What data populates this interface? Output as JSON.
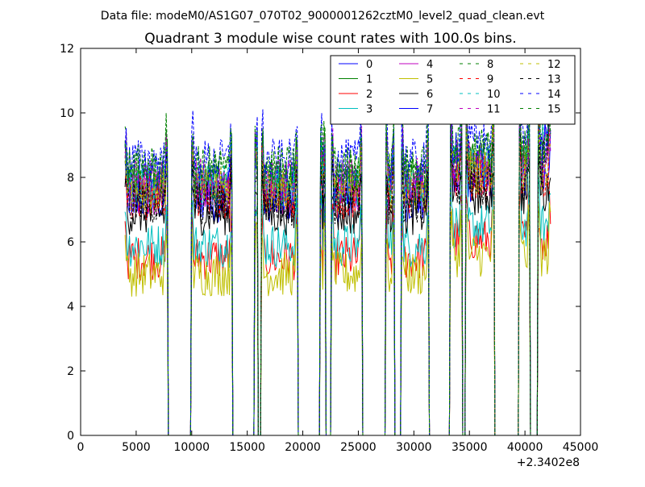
{
  "figure": {
    "supertitle": "Data file: modeM0/AS1G07_070T02_9000001262cztM0_level2_quad_clean.evt"
  },
  "chart_data": {
    "type": "line",
    "title": "Quadrant 3 module wise count rates with 100.0s bins.",
    "xlabel": "",
    "ylabel": "",
    "x_offset_label": "+2.3402e8",
    "xlim": [
      0,
      45000
    ],
    "ylim": [
      0,
      12
    ],
    "x_ticks": [
      0,
      5000,
      10000,
      15000,
      20000,
      25000,
      30000,
      35000,
      40000,
      45000
    ],
    "y_ticks": [
      0,
      2,
      4,
      6,
      8,
      10,
      12
    ],
    "grid": false,
    "legend_position": "top-right",
    "legend_columns": 4,
    "segments_on": [
      [
        4000,
        7800
      ],
      [
        10000,
        13600
      ],
      [
        15700,
        15950
      ],
      [
        16300,
        19500
      ],
      [
        21600,
        22000
      ],
      [
        22600,
        25300
      ],
      [
        27500,
        28200
      ],
      [
        28900,
        31300
      ],
      [
        33300,
        34300
      ],
      [
        34700,
        37200
      ],
      [
        39500,
        40400
      ],
      [
        41200,
        42300
      ]
    ],
    "series": [
      {
        "name": "0",
        "color": "#0000ff",
        "style": "solid",
        "base_level": 7.3
      },
      {
        "name": "1",
        "color": "#008000",
        "style": "solid",
        "base_level": 7.8
      },
      {
        "name": "2",
        "color": "#ff0000",
        "style": "solid",
        "base_level": 5.5
      },
      {
        "name": "3",
        "color": "#00bfbf",
        "style": "solid",
        "base_level": 5.9
      },
      {
        "name": "4",
        "color": "#bf00bf",
        "style": "solid",
        "base_level": 7.5
      },
      {
        "name": "5",
        "color": "#bfbf00",
        "style": "solid",
        "base_level": 5.0
      },
      {
        "name": "6",
        "color": "#000000",
        "style": "solid",
        "base_level": 6.9
      },
      {
        "name": "7",
        "color": "#0000ff",
        "style": "solid",
        "base_level": 7.6
      },
      {
        "name": "8",
        "color": "#008000",
        "style": "dashed",
        "base_level": 8.1
      },
      {
        "name": "9",
        "color": "#ff0000",
        "style": "dashed",
        "base_level": 7.4
      },
      {
        "name": "10",
        "color": "#00bfbf",
        "style": "dashed",
        "base_level": 7.7
      },
      {
        "name": "11",
        "color": "#bf00bf",
        "style": "dashed",
        "base_level": 7.9
      },
      {
        "name": "12",
        "color": "#bfbf00",
        "style": "dashed",
        "base_level": 7.6
      },
      {
        "name": "13",
        "color": "#000000",
        "style": "dashed",
        "base_level": 7.2
      },
      {
        "name": "14",
        "color": "#0000ff",
        "style": "dashed",
        "base_level": 8.5
      },
      {
        "name": "15",
        "color": "#008000",
        "style": "dashed",
        "base_level": 8.3
      }
    ]
  }
}
